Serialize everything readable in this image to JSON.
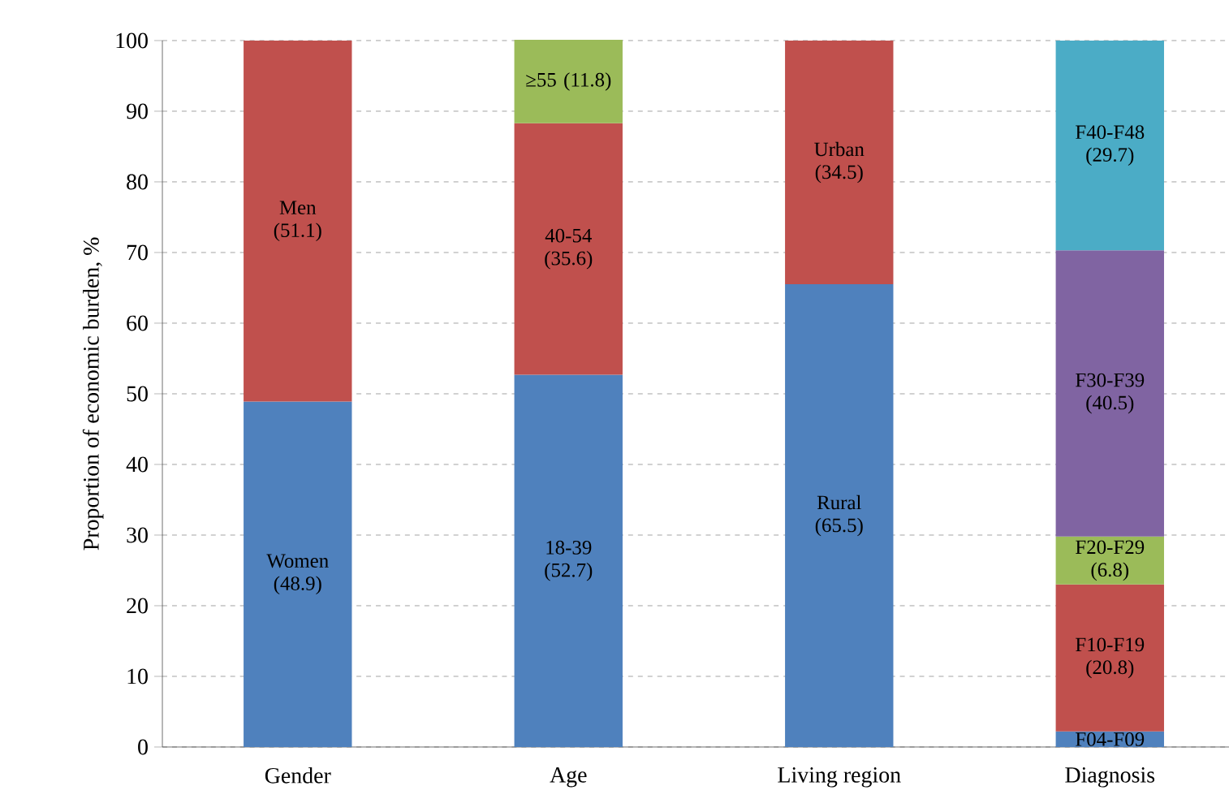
{
  "chart_data": {
    "type": "bar",
    "stacked": true,
    "ylabel": "Proportion of economic burden, %",
    "categories": [
      "Gender",
      "Age",
      "Living region",
      "Diagnosis"
    ],
    "ylim": [
      0,
      100
    ],
    "yticks": [
      0,
      10,
      20,
      30,
      40,
      50,
      60,
      70,
      80,
      90,
      100
    ],
    "grid": "y",
    "series": [
      {
        "color": "#4f81bd",
        "values": [
          48.9,
          52.7,
          65.5,
          2.2
        ],
        "value_labels": [
          "Women (48.9)",
          "18-39 (52.7)",
          "Rural (65.5)",
          "F04-F09"
        ]
      },
      {
        "color": "#c0504d",
        "values": [
          51.1,
          35.6,
          34.5,
          20.8
        ],
        "value_labels": [
          "Men (51.1)",
          "40-54 (35.6)",
          "Urban (34.5)",
          "F10-F19 (20.8)"
        ]
      },
      {
        "color": "#9bbb59",
        "values": [
          null,
          11.8,
          null,
          6.8
        ],
        "value_labels": [
          null,
          "≥55 (11.8)",
          null,
          "F20-F29 (6.8)"
        ]
      },
      {
        "color": "#8064a2",
        "values": [
          null,
          null,
          null,
          40.5
        ],
        "value_labels": [
          null,
          null,
          null,
          "F30-F39 (40.5)"
        ]
      },
      {
        "color": "#4bacc6",
        "values": [
          null,
          null,
          null,
          29.7
        ],
        "value_labels": [
          null,
          null,
          null,
          "F40-F48 (29.7)"
        ]
      }
    ]
  }
}
